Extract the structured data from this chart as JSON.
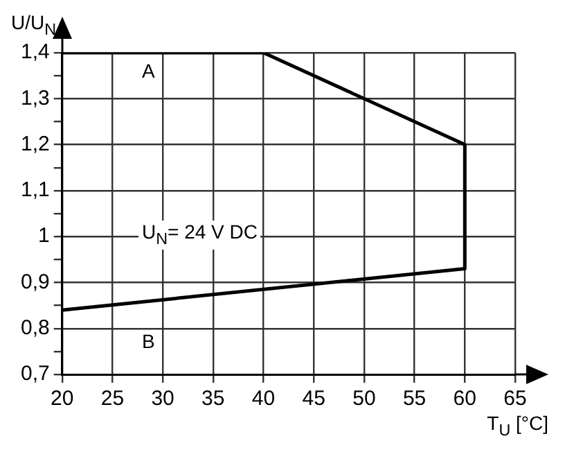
{
  "chart_data": {
    "type": "line",
    "xlabel": "T$_{U}$ [°C]",
    "ylabel": "U/U$_{N}$",
    "series": [
      {
        "color": "#000000",
        "x": [
          20,
          40,
          60,
          60,
          20
        ],
        "values": [
          1.4,
          1.4,
          1.2,
          0.93,
          0.84
        ]
      }
    ],
    "xlim": [
      20,
      65
    ],
    "xticks": [
      20,
      25,
      30,
      35,
      40,
      45,
      50,
      55,
      60,
      65
    ],
    "ylim": [
      0.7,
      1.4
    ],
    "yticks": [
      {
        "value": 0.7,
        "label": "0,7"
      },
      {
        "value": 0.75,
        "label": null
      },
      {
        "value": 0.8,
        "label": "0,8"
      },
      {
        "value": 0.85,
        "label": null
      },
      {
        "value": 0.9,
        "label": "0,9"
      },
      {
        "value": 0.95,
        "label": null
      },
      {
        "value": 1,
        "label": "1"
      },
      {
        "value": 1.05,
        "label": null
      },
      {
        "value": 1.1,
        "label": "1,1"
      },
      {
        "value": 1.15,
        "label": null
      },
      {
        "value": 1.2,
        "label": "1,2"
      },
      {
        "value": 1.25,
        "label": null
      },
      {
        "value": 1.3,
        "label": "1,3"
      },
      {
        "value": 1.35,
        "label": null
      },
      {
        "value": 1.4,
        "label": "1,4"
      }
    ],
    "annotations": [
      "A",
      "B",
      "U$_{N}$= 24 V DC"
    ],
    "grid": true,
    "legend": false,
    "marker": "none",
    "line_style": "solid"
  }
}
